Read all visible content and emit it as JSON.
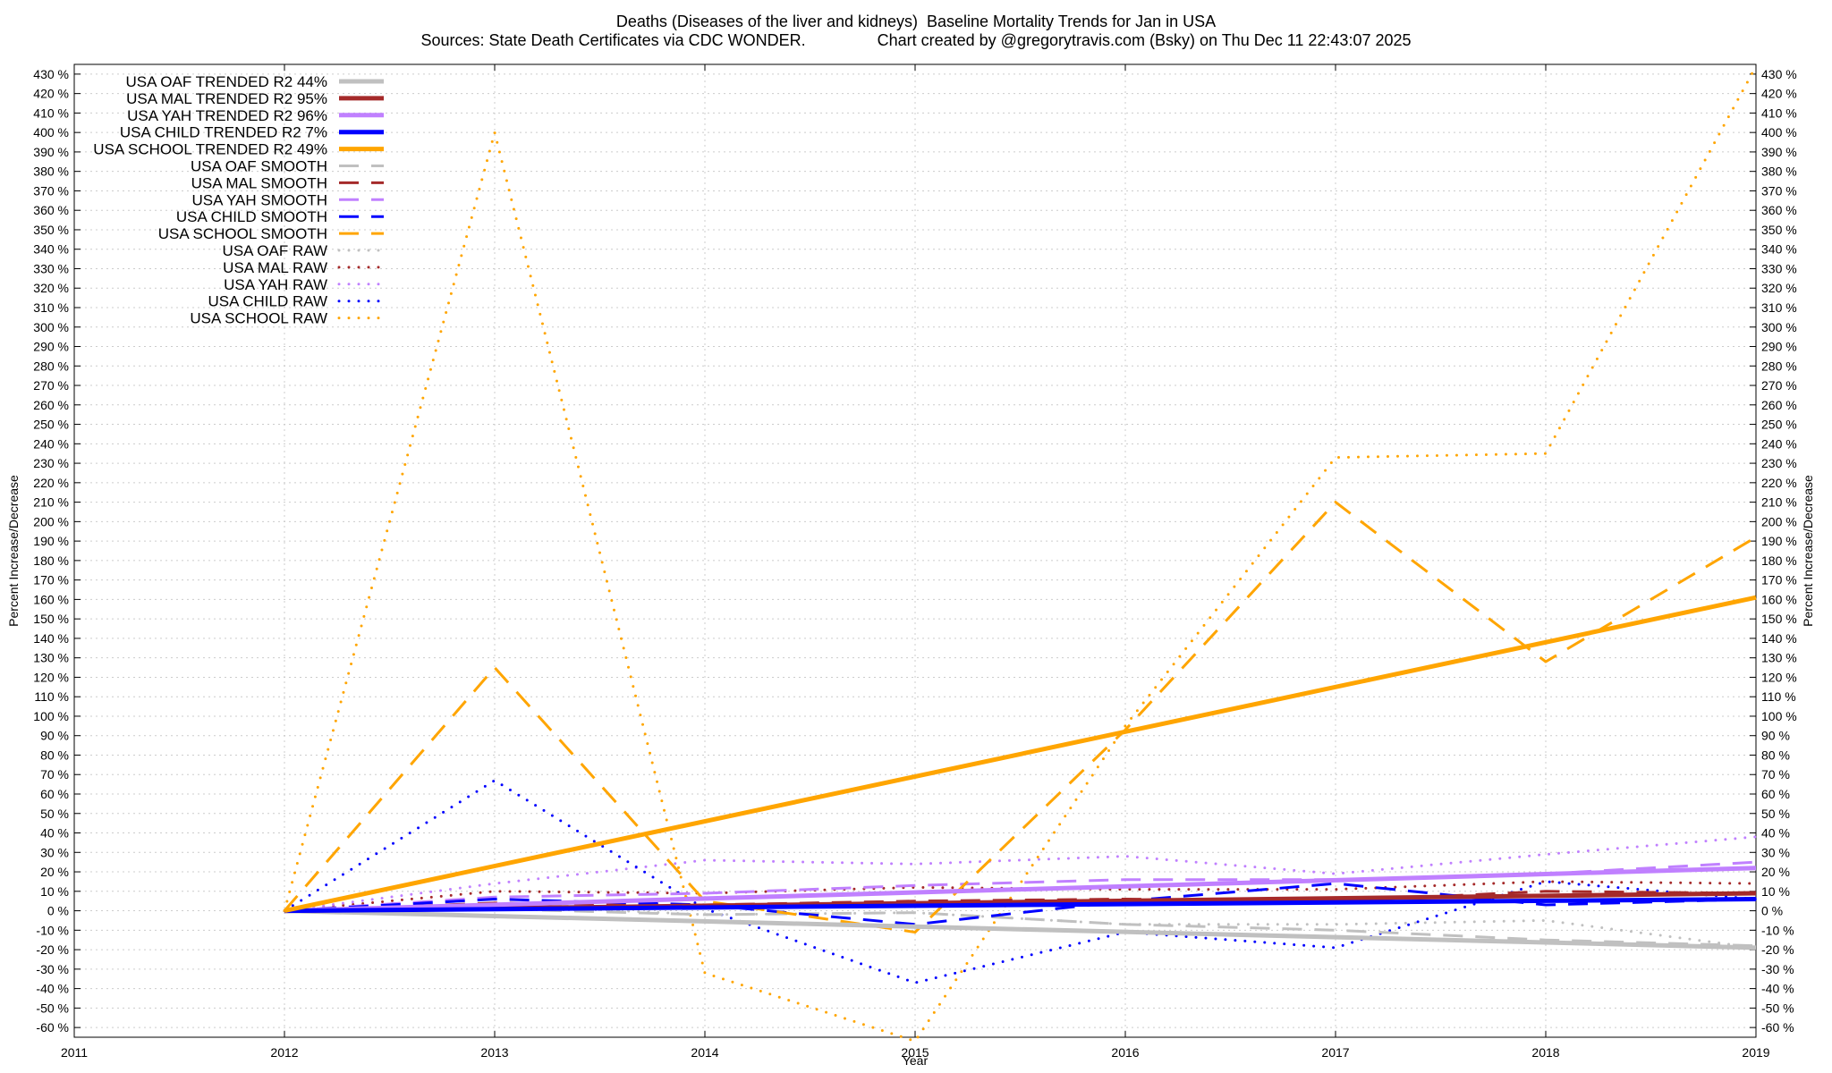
{
  "chart_data": {
    "type": "line",
    "title": "Deaths (Diseases of the liver and kidneys)  Baseline Mortality Trends for Jan in USA",
    "subtitle": "Sources: State Death Certificates via CDC WONDER.                Chart created by @gregorytravis.com (Bsky) on Thu Dec 11 22:43:07 2025",
    "xlabel": "Year",
    "ylabel": "Percent Increase/Decrease",
    "y2label": "Percent Increase/Decrease",
    "xlim": [
      2011,
      2019
    ],
    "ylim": [
      -65,
      435
    ],
    "x_ticks": [
      "2011",
      "2012",
      "2013",
      "2014",
      "2015",
      "2016",
      "2017",
      "2018",
      "2019"
    ],
    "y_ticks": [
      -60,
      -50,
      -40,
      -30,
      -20,
      -10,
      0,
      10,
      20,
      30,
      40,
      50,
      60,
      70,
      80,
      90,
      100,
      110,
      120,
      130,
      140,
      150,
      160,
      170,
      180,
      190,
      200,
      210,
      220,
      230,
      240,
      250,
      260,
      270,
      280,
      290,
      300,
      310,
      320,
      330,
      340,
      350,
      360,
      370,
      380,
      390,
      400,
      410,
      420,
      430
    ],
    "y_tick_suffix": " %",
    "grid": true,
    "legend_position": "top-left",
    "series": [
      {
        "name": "USA OAF TRENDED R2  44%",
        "style": "solid",
        "color": "#c0c0c0",
        "x": [
          2012,
          2019
        ],
        "y": [
          0,
          -19
        ]
      },
      {
        "name": "USA MAL TRENDED R2  95%",
        "style": "solid",
        "color": "#a52a2a",
        "x": [
          2012,
          2019
        ],
        "y": [
          0,
          9
        ]
      },
      {
        "name": "USA YAH TRENDED R2  96%",
        "style": "solid",
        "color": "#c080ff",
        "x": [
          2012,
          2019
        ],
        "y": [
          0,
          22
        ]
      },
      {
        "name": "USA CHILD TRENDED R2  7%",
        "style": "solid",
        "color": "#0000ff",
        "x": [
          2012,
          2019
        ],
        "y": [
          0,
          6
        ]
      },
      {
        "name": "USA SCHOOL TRENDED R2  49%",
        "style": "solid",
        "color": "#ffa500",
        "x": [
          2012,
          2019
        ],
        "y": [
          0,
          161
        ]
      },
      {
        "name": "USA OAF SMOOTH",
        "style": "dashed",
        "color": "#c0c0c0",
        "x": [
          2012,
          2013,
          2014,
          2015,
          2016,
          2017,
          2018,
          2019
        ],
        "y": [
          0,
          1,
          -2,
          -1,
          -7,
          -10,
          -15,
          -18
        ]
      },
      {
        "name": "USA MAL SMOOTH",
        "style": "dashed",
        "color": "#a52a2a",
        "x": [
          2012,
          2013,
          2014,
          2015,
          2016,
          2017,
          2018,
          2019
        ],
        "y": [
          0,
          4,
          3,
          5,
          6,
          5,
          10,
          9
        ]
      },
      {
        "name": "USA YAH SMOOTH",
        "style": "dashed",
        "color": "#c080ff",
        "x": [
          2012,
          2013,
          2014,
          2015,
          2016,
          2017,
          2018,
          2019
        ],
        "y": [
          0,
          7,
          9,
          13,
          16,
          16,
          19,
          25
        ]
      },
      {
        "name": "USA CHILD SMOOTH",
        "style": "dashed",
        "color": "#0000ff",
        "x": [
          2012,
          2013,
          2014,
          2015,
          2016,
          2017,
          2018,
          2019
        ],
        "y": [
          0,
          6,
          3,
          -7,
          5,
          14,
          3,
          6
        ]
      },
      {
        "name": "USA SCHOOL SMOOTH",
        "style": "dashed",
        "color": "#ffa500",
        "x": [
          2012,
          2013,
          2014,
          2015,
          2016,
          2017,
          2018,
          2019
        ],
        "y": [
          0,
          125,
          5,
          -11,
          93,
          210,
          128,
          192
        ]
      },
      {
        "name": "USA OAF RAW",
        "style": "dotted",
        "color": "#c0c0c0",
        "x": [
          2012,
          2013,
          2014,
          2015,
          2016,
          2017,
          2018,
          2019
        ],
        "y": [
          0,
          3,
          -2,
          -1,
          -7,
          -7,
          -5,
          -19
        ]
      },
      {
        "name": "USA MAL RAW",
        "style": "dotted",
        "color": "#a52a2a",
        "x": [
          2012,
          2013,
          2014,
          2015,
          2016,
          2017,
          2018,
          2019
        ],
        "y": [
          0,
          10,
          9,
          12,
          11,
          11,
          15,
          14
        ]
      },
      {
        "name": "USA YAH RAW",
        "style": "dotted",
        "color": "#c080ff",
        "x": [
          2012,
          2013,
          2014,
          2015,
          2016,
          2017,
          2018,
          2019
        ],
        "y": [
          0,
          14,
          26,
          24,
          28,
          19,
          29,
          38
        ]
      },
      {
        "name": "USA CHILD RAW",
        "style": "dotted",
        "color": "#0000ff",
        "x": [
          2012,
          2013,
          2014,
          2015,
          2016,
          2017,
          2018,
          2019
        ],
        "y": [
          0,
          67,
          1,
          -37,
          -11,
          -19,
          15,
          6
        ]
      },
      {
        "name": "USA SCHOOL RAW",
        "style": "dotted",
        "color": "#ffa500",
        "x": [
          2012,
          2013,
          2014,
          2015,
          2016,
          2017,
          2018,
          2019
        ],
        "y": [
          0,
          400,
          -32,
          -67,
          95,
          233,
          235,
          434
        ]
      }
    ]
  }
}
